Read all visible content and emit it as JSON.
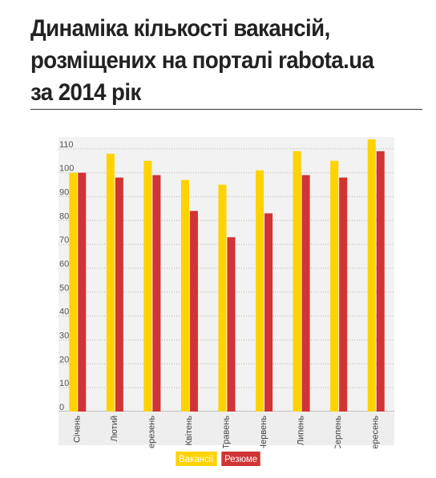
{
  "title": "Динаміка кількості вакансій, розміщених на порталі rabota.ua за 2014 рік",
  "chart_data": {
    "type": "bar",
    "title": "Динаміка кількості вакансій, розміщених на порталі rabota.ua за 2014 рік",
    "xlabel": "",
    "ylabel": "",
    "ylim": [
      0,
      115
    ],
    "yticks": [
      0,
      10,
      20,
      30,
      40,
      50,
      60,
      70,
      80,
      90,
      100,
      110
    ],
    "grid": true,
    "legend_position": "bottom",
    "categories": [
      "Січень",
      "Лютий",
      "Березень",
      "Квітень",
      "Травень",
      "Червень",
      "Липень",
      "Серпень",
      "Вересень"
    ],
    "series": [
      {
        "name": "Вакансії",
        "color": "#FFD200",
        "values": [
          100,
          108,
          105,
          97,
          95,
          101,
          109,
          105,
          114
        ]
      },
      {
        "name": "Резюме",
        "color": "#D13434",
        "values": [
          100,
          98,
          99,
          84,
          73,
          83,
          99,
          98,
          109
        ]
      }
    ]
  }
}
